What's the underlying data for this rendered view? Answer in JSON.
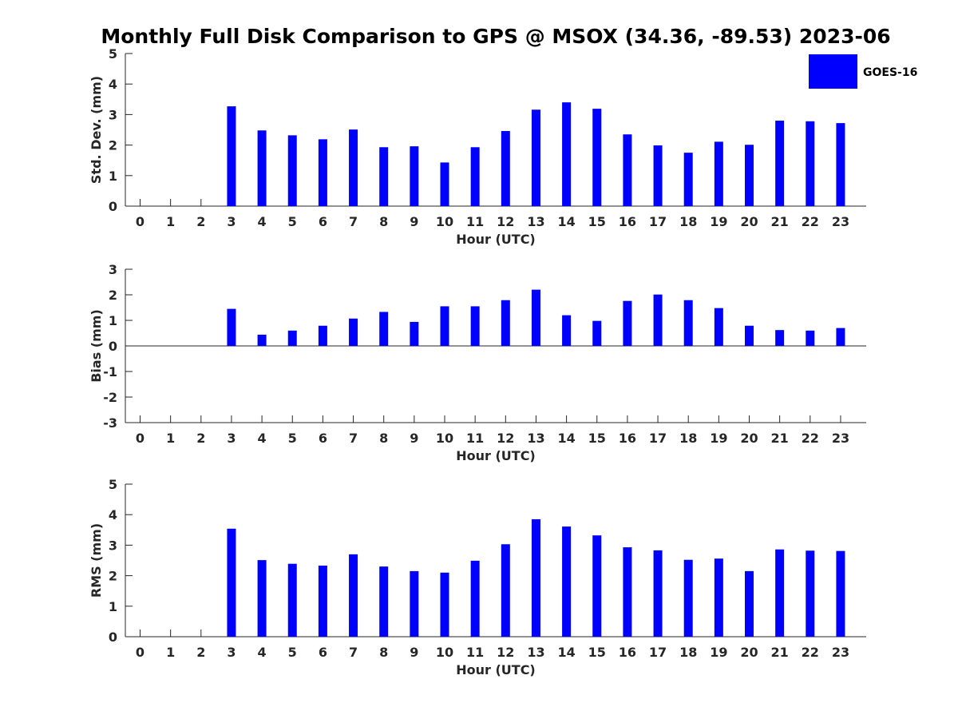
{
  "title": "Monthly Full Disk Comparison to GPS @ MSOX (34.36, -89.53) 2023-06",
  "legend": {
    "label": "GOES-16",
    "color": "#0000ff",
    "placement": "top-right"
  },
  "chart_data": [
    {
      "type": "bar",
      "ylabel": "Std. Dev. (mm)",
      "xlabel": "Hour (UTC)",
      "ylim": [
        0,
        5
      ],
      "yticks": [
        0,
        1,
        2,
        3,
        4,
        5
      ],
      "categories": [
        "0",
        "1",
        "2",
        "3",
        "4",
        "5",
        "6",
        "7",
        "8",
        "9",
        "10",
        "11",
        "12",
        "13",
        "14",
        "15",
        "16",
        "17",
        "18",
        "19",
        "20",
        "21",
        "22",
        "23"
      ],
      "series": [
        {
          "name": "GOES-16",
          "color": "#0000ff",
          "values": [
            null,
            null,
            null,
            3.27,
            2.48,
            2.32,
            2.19,
            2.51,
            1.93,
            1.96,
            1.43,
            1.93,
            2.46,
            3.16,
            3.4,
            3.19,
            2.35,
            1.99,
            1.75,
            2.11,
            2.01,
            2.8,
            2.78,
            2.72
          ]
        }
      ]
    },
    {
      "type": "bar",
      "ylabel": "Bias (mm)",
      "xlabel": "Hour (UTC)",
      "ylim": [
        -3,
        3
      ],
      "yticks": [
        -3,
        -2,
        -1,
        0,
        1,
        2,
        3
      ],
      "categories": [
        "0",
        "1",
        "2",
        "3",
        "4",
        "5",
        "6",
        "7",
        "8",
        "9",
        "10",
        "11",
        "12",
        "13",
        "14",
        "15",
        "16",
        "17",
        "18",
        "19",
        "20",
        "21",
        "22",
        "23"
      ],
      "series": [
        {
          "name": "GOES-16",
          "color": "#0000ff",
          "values": [
            null,
            null,
            null,
            1.45,
            0.44,
            0.6,
            0.79,
            1.07,
            1.33,
            0.94,
            1.55,
            1.55,
            1.79,
            2.2,
            1.2,
            0.98,
            1.76,
            2.01,
            1.79,
            1.48,
            0.79,
            0.62,
            0.6,
            0.7
          ]
        }
      ]
    },
    {
      "type": "bar",
      "ylabel": "RMS (mm)",
      "xlabel": "Hour (UTC)",
      "ylim": [
        0,
        5
      ],
      "yticks": [
        0,
        1,
        2,
        3,
        4,
        5
      ],
      "categories": [
        "0",
        "1",
        "2",
        "3",
        "4",
        "5",
        "6",
        "7",
        "8",
        "9",
        "10",
        "11",
        "12",
        "13",
        "14",
        "15",
        "16",
        "17",
        "18",
        "19",
        "20",
        "21",
        "22",
        "23"
      ],
      "series": [
        {
          "name": "GOES-16",
          "color": "#0000ff",
          "values": [
            null,
            null,
            null,
            3.54,
            2.51,
            2.39,
            2.33,
            2.7,
            2.3,
            2.15,
            2.1,
            2.49,
            3.03,
            3.85,
            3.61,
            3.32,
            2.93,
            2.83,
            2.52,
            2.56,
            2.15,
            2.86,
            2.82,
            2.81
          ]
        }
      ]
    }
  ]
}
